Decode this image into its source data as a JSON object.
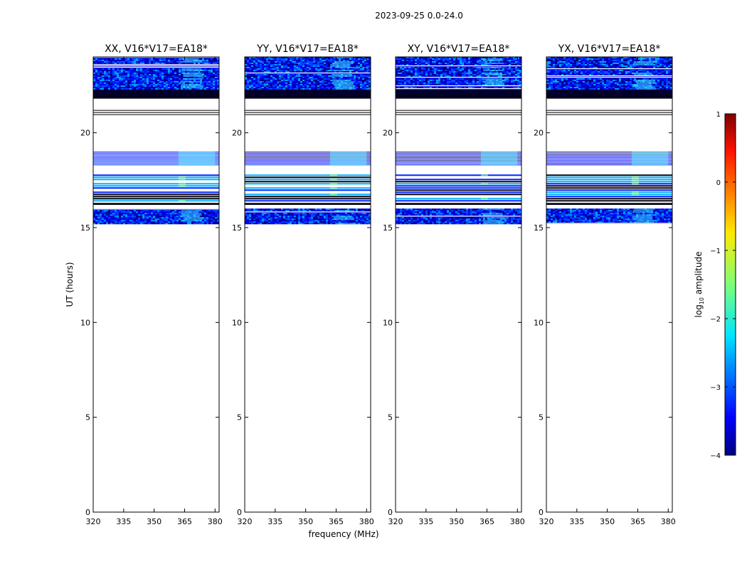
{
  "figure": {
    "suptitle": "2023-09-25 0.0-24.0",
    "ylabel": "UT (hours)",
    "xlabel": "frequency (MHz)"
  },
  "chart_data": {
    "type": "heatmap",
    "xlim": [
      320,
      382
    ],
    "ylim": [
      0,
      24
    ],
    "xticks": [
      320,
      335,
      350,
      365,
      380
    ],
    "yticks": [
      0,
      5,
      10,
      15,
      20
    ],
    "panels": [
      {
        "title": "XX, V16*V17=EA18*"
      },
      {
        "title": "YY, V16*V17=EA18*"
      },
      {
        "title": "XY, V16*V17=EA18*"
      },
      {
        "title": "YX, V16*V17=EA18*"
      }
    ],
    "data_time_bands_hours": [
      {
        "start": 15.2,
        "end": 16.0,
        "style": "noise"
      },
      {
        "start": 16.2,
        "end": 16.3,
        "style": "black"
      },
      {
        "start": 16.35,
        "end": 17.8,
        "style": "stripes"
      },
      {
        "start": 18.3,
        "end": 19.0,
        "style": "blue-lines"
      },
      {
        "start": 20.9,
        "end": 21.2,
        "style": "lines"
      },
      {
        "start": 21.8,
        "end": 22.3,
        "style": "black"
      },
      {
        "start": 22.3,
        "end": 24.0,
        "style": "noise"
      }
    ],
    "rfi_band_mhz": [
      362,
      380
    ],
    "colorbar": {
      "label": "log",
      "label_sub": "10",
      "label_rest": " amplitude",
      "range": [
        -4,
        1
      ],
      "ticks": [
        "1",
        "0",
        "−1",
        "−2",
        "−3",
        "−4"
      ]
    }
  }
}
